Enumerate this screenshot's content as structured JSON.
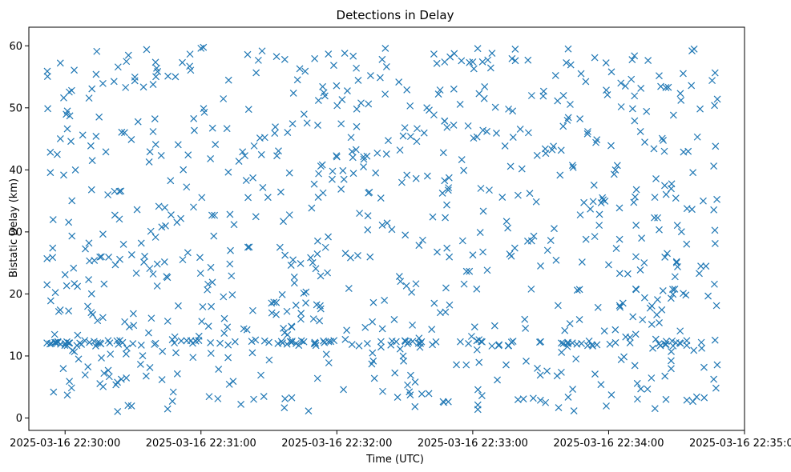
{
  "chart_data": {
    "type": "scatter",
    "title": "Detections in Delay",
    "xlabel": "Time (UTC)",
    "ylabel": "Bistatic Delay (km)",
    "marker": "x",
    "color": "#1f77b4",
    "grid": false,
    "legend": "none",
    "x_axis": {
      "type": "time",
      "start": "2025-03-16 22:29:44",
      "end": "2025-03-16 22:35:00",
      "ticks": [
        "2025-03-16 22:30:00",
        "2025-03-16 22:31:00",
        "2025-03-16 22:32:00",
        "2025-03-16 22:33:00",
        "2025-03-16 22:34:00",
        "2025-03-16 22:35:00"
      ]
    },
    "y_axis": {
      "ylim": [
        -2,
        63
      ],
      "ticks": [
        0,
        10,
        20,
        30,
        40,
        50,
        60
      ]
    },
    "seed": 20250316,
    "series": [
      {
        "x": [
          "2025-03-16 22:29:52",
          "2025-03-16 22:29:54",
          "2025-03-16 22:29:56",
          "2025-03-16 22:29:58",
          "2025-03-16 22:30:00",
          "2025-03-16 22:30:02",
          "2025-03-16 22:30:10",
          "2025-03-16 22:30:12",
          "2025-03-16 22:30:14",
          "2025-03-16 22:30:16",
          "2025-03-16 22:30:18",
          "2025-03-16 22:30:20",
          "2025-03-16 22:30:36",
          "2025-03-16 22:30:40",
          "2025-03-16 22:30:55",
          "2025-03-16 22:31:00",
          "2025-03-16 22:31:20",
          "2025-03-16 22:31:30",
          "2025-03-16 22:31:34",
          "2025-03-16 22:31:36",
          "2025-03-16 22:31:38",
          "2025-03-16 22:31:40",
          "2025-03-16 22:31:42",
          "2025-03-16 22:31:44",
          "2025-03-16 22:31:46",
          "2025-03-16 22:31:50",
          "2025-03-16 22:31:55",
          "2025-03-16 22:32:00",
          "2025-03-16 22:32:10",
          "2025-03-16 22:32:20",
          "2025-03-16 22:32:30",
          "2025-03-16 22:32:40",
          "2025-03-16 22:32:50",
          "2025-03-16 22:33:00",
          "2025-03-16 22:33:10",
          "2025-03-16 22:33:20",
          "2025-03-16 22:33:30",
          "2025-03-16 22:33:40",
          "2025-03-16 22:33:42",
          "2025-03-16 22:33:44",
          "2025-03-16 22:33:46",
          "2025-03-16 22:33:48",
          "2025-03-16 22:33:50",
          "2025-03-16 22:34:00",
          "2025-03-16 22:34:10",
          "2025-03-16 22:34:20",
          "2025-03-16 22:34:30",
          "2025-03-16 22:34:40",
          "2025-03-16 22:34:48"
        ],
        "y": [
          12.1,
          12.0,
          12.2,
          11.9,
          12.0,
          12.1,
          18.0,
          41.5,
          59.1,
          26.0,
          42.9,
          10.3,
          59.4,
          44.1,
          56.7,
          59.6,
          38.3,
          12.2,
          12.0,
          12.1,
          11.9,
          12.2,
          12.0,
          24.9,
          55.9,
          37.7,
          27.5,
          42.1,
          33.0,
          57.8,
          46.8,
          39.0,
          58.2,
          57.4,
          50.1,
          35.9,
          12.3,
          12.0,
          12.2,
          12.1,
          11.9,
          12.0,
          28.8,
          24.7,
          54.6,
          43.4,
          25.2,
          23.3,
          51.4
        ]
      }
    ]
  }
}
